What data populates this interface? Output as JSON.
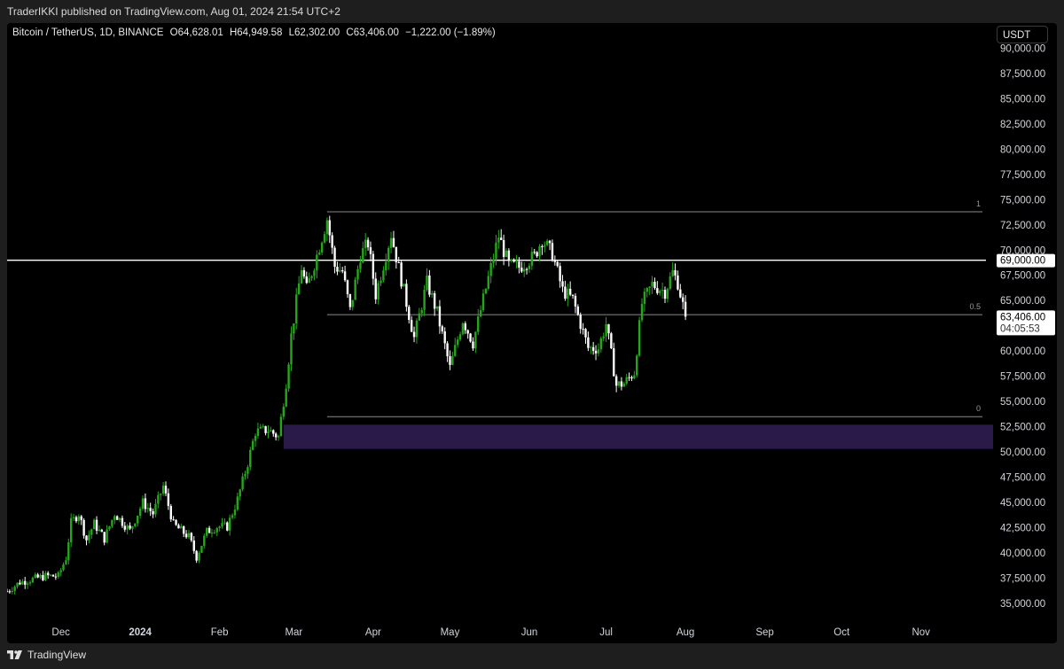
{
  "header": {
    "published_text": "TraderIKKI published on TradingView.com, Aug 01, 2024 21:54 UTC+2"
  },
  "legend": {
    "symbol": "Bitcoin / TetherUS, 1D, BINANCE",
    "open": "O64,628.01",
    "high": "H64,949.58",
    "low": "L62,302.00",
    "close": "C63,406.00",
    "change": "−1,222.00 (−1.89%)"
  },
  "currency_button": "USDT",
  "footer": {
    "brand": "TradingView"
  },
  "colors": {
    "background": "#000000",
    "up_candle": "#26a61b",
    "down_candle": "#ffffff",
    "zone": "#2a1a4a",
    "level_line": "#ffffff",
    "fib_line": "#8a8a8a"
  },
  "price_labels": {
    "current": "63,406.00",
    "countdown": "04:05:53",
    "level": "69,000.00"
  },
  "chart_data": {
    "type": "candlestick",
    "title": "Bitcoin / TetherUS, 1D, BINANCE",
    "y_range": [
      33500,
      92500
    ],
    "y_ticks": [
      35000,
      37500,
      40000,
      42500,
      45000,
      47500,
      50000,
      52500,
      55000,
      57500,
      60000,
      62500,
      65000,
      67500,
      70000,
      72500,
      75000,
      77500,
      80000,
      82500,
      85000,
      87500,
      90000
    ],
    "y_tick_labels": [
      "35,000.00",
      "37,500.00",
      "40,000.00",
      "42,500.00",
      "45,000.00",
      "47,500.00",
      "50,000.00",
      "52,500.00",
      "55,000.00",
      "57,500.00",
      "60,000.00",
      "62,500.00",
      "65,000.00",
      "67,500.00",
      "70,000.00",
      "72,500.00",
      "75,000.00",
      "77,500.00",
      "80,000.00",
      "82,500.00",
      "85,000.00",
      "87,500.00",
      "90,000.00"
    ],
    "x_range": [
      "2023-11-10",
      "2024-11-25"
    ],
    "x_ticks": [
      {
        "date": "2023-12-01",
        "label": "Dec"
      },
      {
        "date": "2024-01-01",
        "label": "2024"
      },
      {
        "date": "2024-02-01",
        "label": "Feb"
      },
      {
        "date": "2024-03-01",
        "label": "Mar"
      },
      {
        "date": "2024-04-01",
        "label": "Apr"
      },
      {
        "date": "2024-05-01",
        "label": "May"
      },
      {
        "date": "2024-06-01",
        "label": "Jun"
      },
      {
        "date": "2024-07-01",
        "label": "Jul"
      },
      {
        "date": "2024-08-01",
        "label": "Aug"
      },
      {
        "date": "2024-09-01",
        "label": "Sep"
      },
      {
        "date": "2024-10-01",
        "label": "Oct"
      },
      {
        "date": "2024-11-01",
        "label": "Nov"
      }
    ],
    "horizontal_level": 69000,
    "fib_levels": [
      {
        "label": "1",
        "price": 73800
      },
      {
        "label": "0.5",
        "price": 63600
      },
      {
        "label": "0",
        "price": 53500
      }
    ],
    "fib_start_date": "2024-03-14",
    "zone": {
      "start_date": "2024-02-26",
      "top": 52700,
      "bottom": 50300
    },
    "last_price": 63406,
    "close_path": [
      [
        "2023-11-10",
        36200
      ],
      [
        "2023-11-15",
        37100
      ],
      [
        "2023-11-20",
        37400
      ],
      [
        "2023-11-25",
        37700
      ],
      [
        "2023-11-30",
        37700
      ],
      [
        "2023-12-03",
        39500
      ],
      [
        "2023-12-05",
        43000
      ],
      [
        "2023-12-08",
        43900
      ],
      [
        "2023-12-11",
        41300
      ],
      [
        "2023-12-14",
        42900
      ],
      [
        "2023-12-18",
        41400
      ],
      [
        "2023-12-22",
        43900
      ],
      [
        "2023-12-28",
        42200
      ],
      [
        "2024-01-02",
        45000
      ],
      [
        "2024-01-06",
        43900
      ],
      [
        "2024-01-10",
        46600
      ],
      [
        "2024-01-14",
        42800
      ],
      [
        "2024-01-20",
        41600
      ],
      [
        "2024-01-23",
        39600
      ],
      [
        "2024-01-27",
        42100
      ],
      [
        "2024-01-31",
        42600
      ],
      [
        "2024-02-04",
        42600
      ],
      [
        "2024-02-08",
        45300
      ],
      [
        "2024-02-12",
        48900
      ],
      [
        "2024-02-15",
        52000
      ],
      [
        "2024-02-20",
        52200
      ],
      [
        "2024-02-24",
        51500
      ],
      [
        "2024-02-27",
        56900
      ],
      [
        "2024-02-29",
        61500
      ],
      [
        "2024-03-04",
        68300
      ],
      [
        "2024-03-06",
        66100
      ],
      [
        "2024-03-10",
        69500
      ],
      [
        "2024-03-14",
        73100
      ],
      [
        "2024-03-17",
        68400
      ],
      [
        "2024-03-20",
        67900
      ],
      [
        "2024-03-23",
        64000
      ],
      [
        "2024-03-27",
        69500
      ],
      [
        "2024-03-30",
        70700
      ],
      [
        "2024-04-02",
        65600
      ],
      [
        "2024-04-08",
        71600
      ],
      [
        "2024-04-12",
        67100
      ],
      [
        "2024-04-17",
        61300
      ],
      [
        "2024-04-22",
        66800
      ],
      [
        "2024-04-26",
        63800
      ],
      [
        "2024-05-01",
        58300
      ],
      [
        "2024-05-06",
        63100
      ],
      [
        "2024-05-10",
        60800
      ],
      [
        "2024-05-15",
        66200
      ],
      [
        "2024-05-20",
        71400
      ],
      [
        "2024-05-24",
        68500
      ],
      [
        "2024-05-28",
        68300
      ],
      [
        "2024-06-03",
        69400
      ],
      [
        "2024-06-06",
        71100
      ],
      [
        "2024-06-10",
        69600
      ],
      [
        "2024-06-14",
        66000
      ],
      [
        "2024-06-18",
        65100
      ],
      [
        "2024-06-24",
        60300
      ],
      [
        "2024-06-28",
        60300
      ],
      [
        "2024-07-01",
        62700
      ],
      [
        "2024-07-05",
        56600
      ],
      [
        "2024-07-08",
        56800
      ],
      [
        "2024-07-12",
        57900
      ],
      [
        "2024-07-15",
        64700
      ],
      [
        "2024-07-19",
        66600
      ],
      [
        "2024-07-24",
        65900
      ],
      [
        "2024-07-27",
        67800
      ],
      [
        "2024-07-29",
        66800
      ],
      [
        "2024-08-01",
        63406
      ]
    ]
  }
}
